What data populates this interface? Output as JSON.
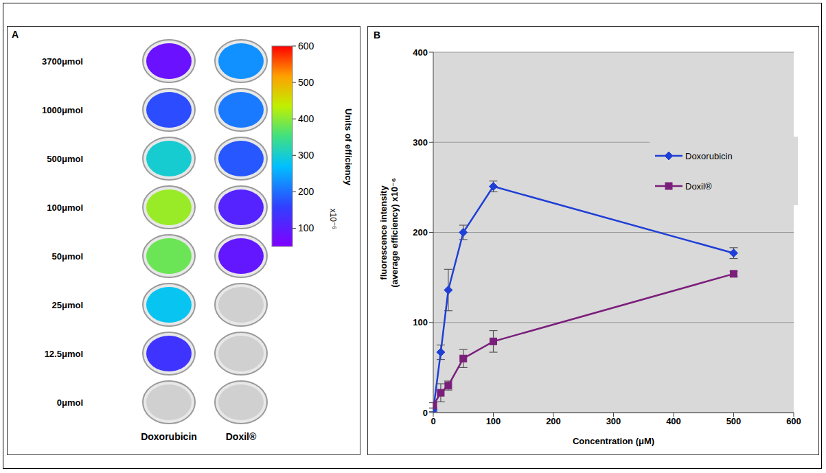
{
  "chart_data": [
    {
      "panel": "A",
      "type": "heatmap",
      "row_labels": [
        "3700μmol",
        "1000μmol",
        "500μmol",
        "100μmol",
        "50μmol",
        "25μmol",
        "12.5μmol",
        "0μmol"
      ],
      "column_labels": [
        "Doxorubicin",
        "Doxil®"
      ],
      "cells": [
        [
          80,
          230
        ],
        [
          170,
          210
        ],
        [
          300,
          180
        ],
        [
          410,
          110
        ],
        [
          380,
          90
        ],
        [
          280,
          null
        ],
        [
          140,
          null
        ],
        [
          null,
          null
        ]
      ],
      "colorbar": {
        "label": "Units of efficiency",
        "unit": "x10⁻⁶",
        "range": [
          50,
          600
        ],
        "ticks": [
          100,
          200,
          300,
          400,
          500,
          600
        ]
      }
    },
    {
      "panel": "B",
      "type": "line",
      "x_label": "Concentration (μM)",
      "y_label": "fluorescence intensity (average efficiency) x10⁻⁶",
      "x": [
        0,
        12.5,
        25,
        50,
        100,
        500
      ],
      "series": [
        {
          "name": "Doxorubicin",
          "color": "#1f3fd6",
          "marker": "diamond",
          "values": [
            3,
            67,
            136,
            200,
            251,
            177
          ],
          "errors": [
            2,
            8,
            23,
            8,
            6,
            6
          ]
        },
        {
          "name": "Doxil®",
          "color": "#7b1e7b",
          "marker": "square",
          "values": [
            8,
            22,
            30,
            60,
            79,
            154
          ],
          "errors": [
            3,
            10,
            5,
            10,
            12,
            3
          ]
        }
      ],
      "xlim": [
        0,
        600
      ],
      "xticks": [
        0,
        100,
        200,
        300,
        400,
        500,
        600
      ],
      "ylim": [
        0,
        400
      ],
      "yticks": [
        0,
        100,
        200,
        300,
        400
      ],
      "grid": true,
      "legend": "right"
    }
  ]
}
